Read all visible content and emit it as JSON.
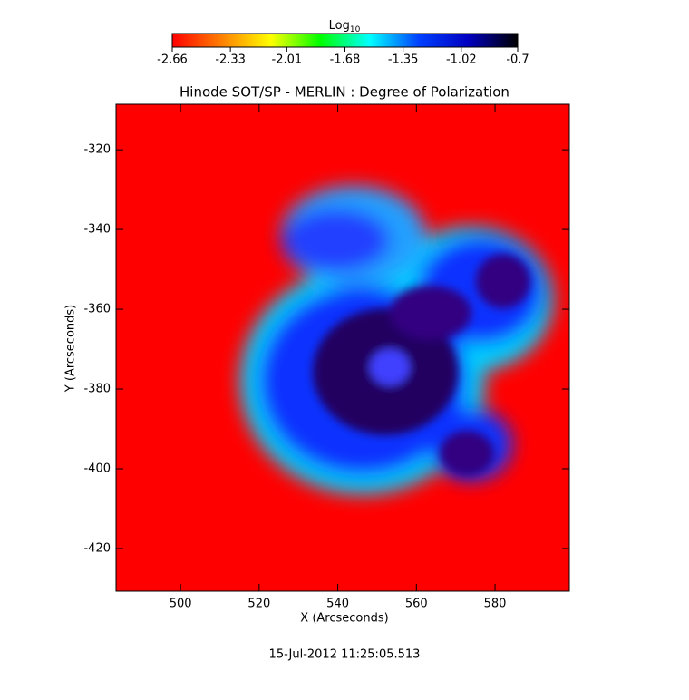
{
  "chart_data": {
    "type": "heatmap",
    "title": "Hinode SOT/SP - MERLIN : Degree of Polarization",
    "x_label": "X (Arcseconds)",
    "y_label": "Y (Arcseconds)",
    "footer": "15-Jul-2012 11:25:05.513",
    "xlim": [
      483.6,
      598.9
    ],
    "xticks": [
      500,
      520,
      540,
      560,
      580
    ],
    "ylim": [
      -430.7,
      -308.6
    ],
    "yticks": [
      -420,
      -400,
      -380,
      -360,
      -340,
      -320
    ],
    "colorbar": {
      "title": "Log",
      "title_sub": "10",
      "lim": [
        -2.66,
        -0.7
      ],
      "ticks": [
        -2.66,
        -2.33,
        -2.01,
        -1.68,
        -1.35,
        -1.02,
        -0.7
      ],
      "colormap": [
        "#ff0000",
        "#ff8000",
        "#ffff00",
        "#00ff00",
        "#00ffff",
        "#0040ff",
        "#0000c0",
        "#000000"
      ]
    }
  }
}
